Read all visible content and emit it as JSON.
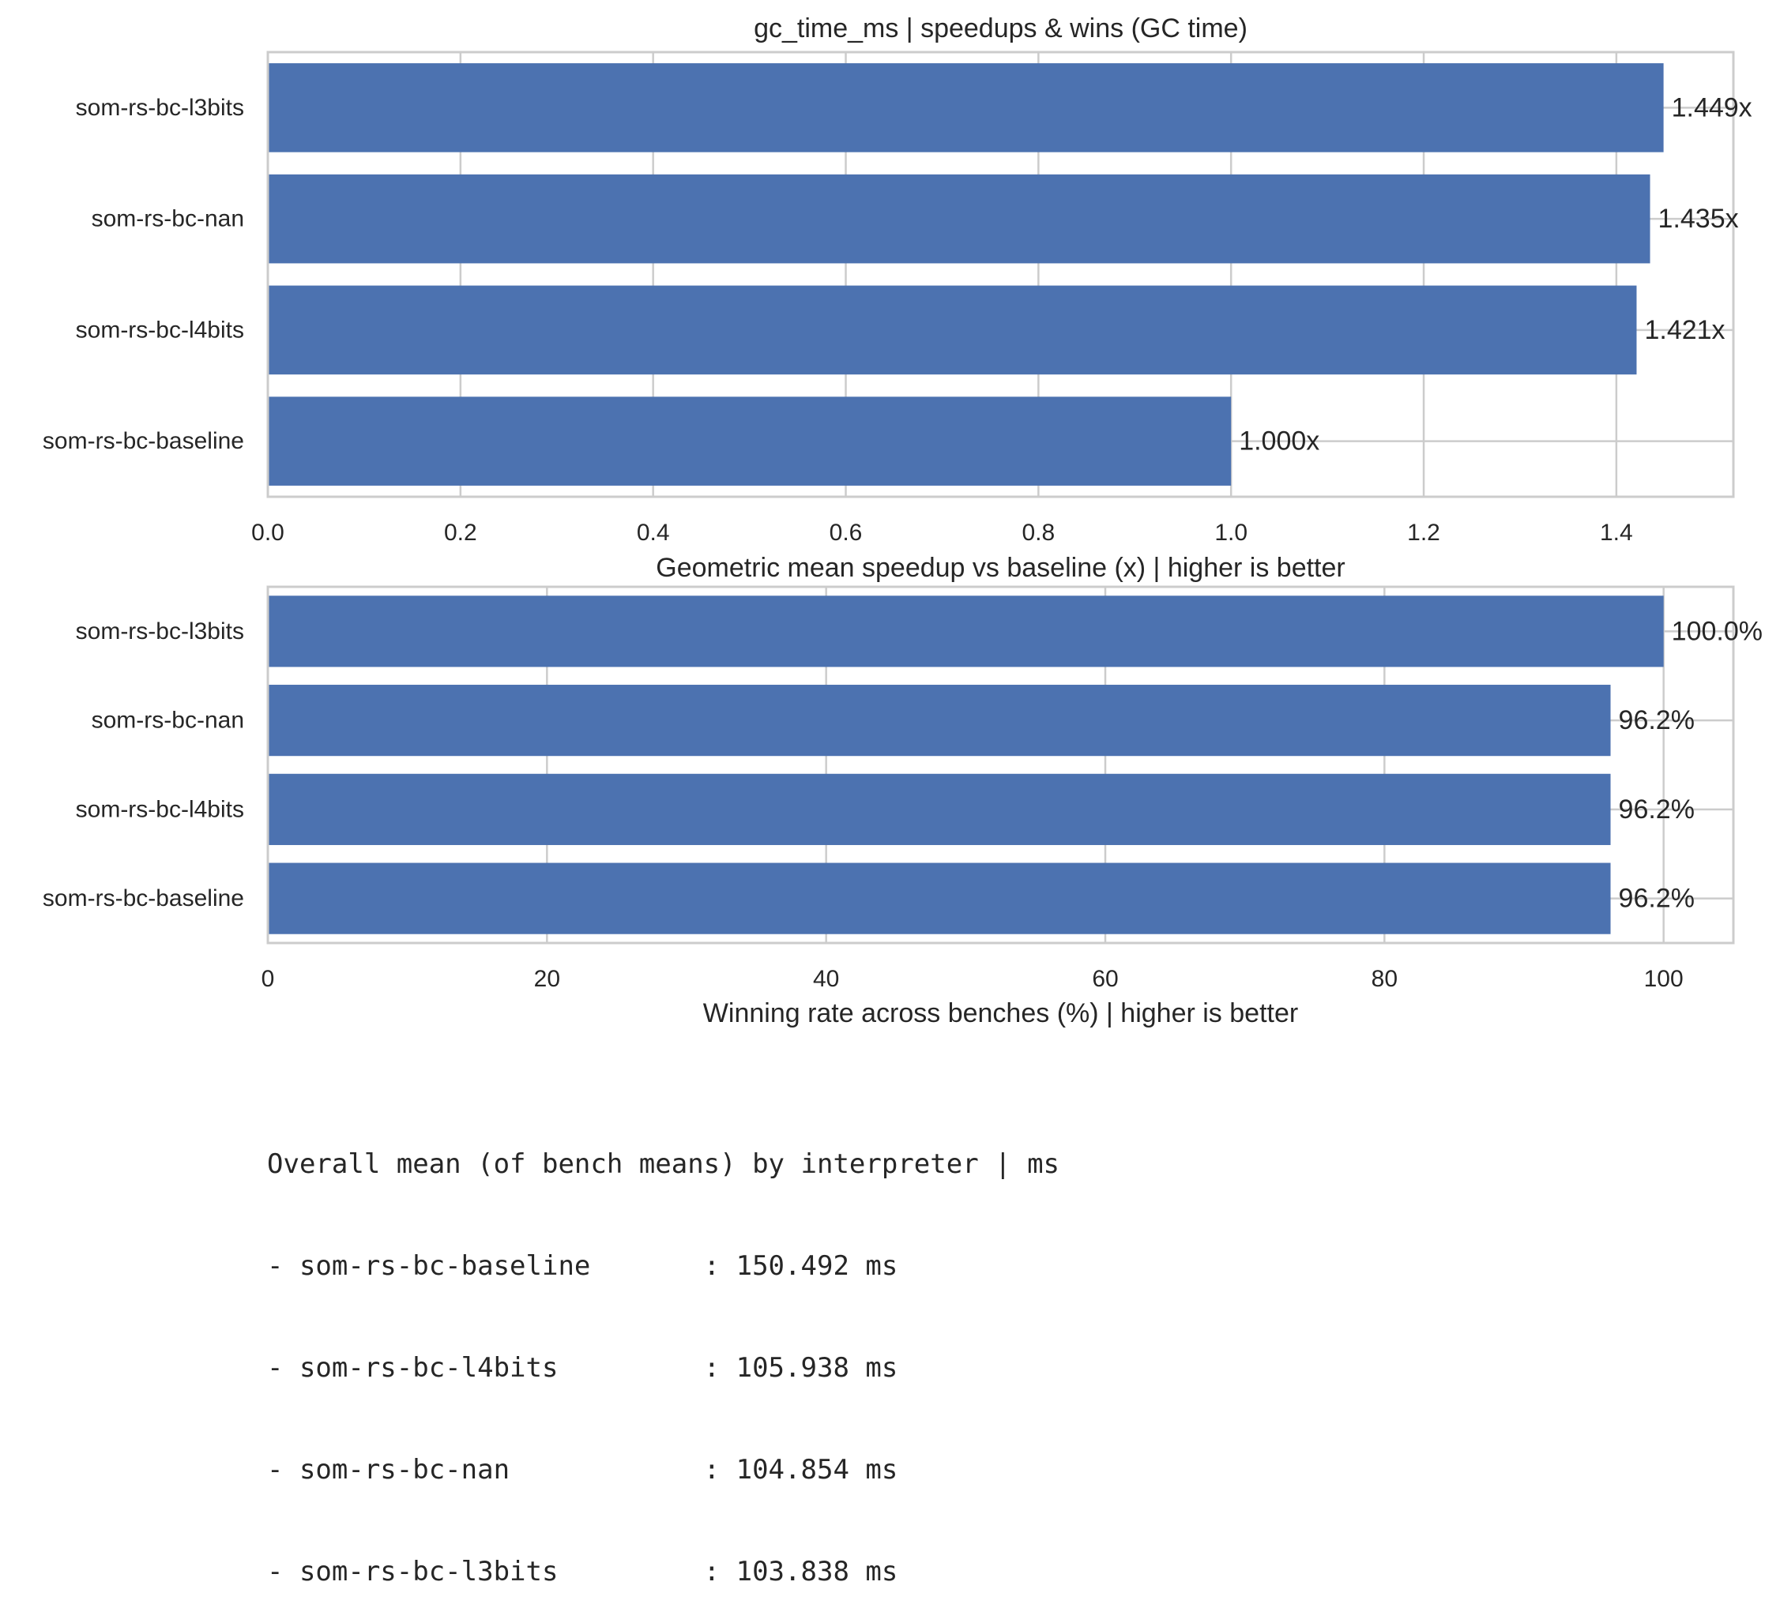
{
  "chart_data": [
    {
      "type": "bar",
      "orientation": "horizontal",
      "title": "gc_time_ms | speedups & wins (GC time)",
      "xlabel": "",
      "categories": [
        "som-rs-bc-l3bits",
        "som-rs-bc-nan",
        "som-rs-bc-l4bits",
        "som-rs-bc-baseline"
      ],
      "values": [
        1.449,
        1.435,
        1.421,
        1.0
      ],
      "data_labels": [
        "1.449x",
        "1.435x",
        "1.421x",
        "1.000x"
      ],
      "xticks": [
        0.0,
        0.2,
        0.4,
        0.6,
        0.8,
        1.0,
        1.2,
        1.4
      ],
      "xtick_labels": [
        "0.0",
        "0.2",
        "0.4",
        "0.6",
        "0.8",
        "1.0",
        "1.2",
        "1.4"
      ],
      "xlim": [
        0,
        1.5215
      ],
      "grid": true,
      "bar_color": "#4c72b0"
    },
    {
      "type": "bar",
      "orientation": "horizontal",
      "title": "Geometric mean speedup vs baseline (x) | higher is better",
      "xlabel": "Winning rate across benches (%) | higher is better",
      "categories": [
        "som-rs-bc-l3bits",
        "som-rs-bc-nan",
        "som-rs-bc-l4bits",
        "som-rs-bc-baseline"
      ],
      "values": [
        100.0,
        96.2,
        96.2,
        96.2
      ],
      "data_labels": [
        "100.0%",
        "96.2%",
        "96.2%",
        "96.2%"
      ],
      "xticks": [
        0,
        20,
        40,
        60,
        80,
        100
      ],
      "xtick_labels": [
        "0",
        "20",
        "40",
        "60",
        "80",
        "100"
      ],
      "xlim": [
        0,
        105
      ],
      "grid": true,
      "bar_color": "#4c72b0"
    }
  ],
  "summary": {
    "heading": "Overall mean (of bench means) by interpreter | ms",
    "lines": [
      "- som-rs-bc-baseline       : 150.492 ms",
      "- som-rs-bc-l4bits         : 105.938 ms",
      "- som-rs-bc-nan            : 104.854 ms",
      "- som-rs-bc-l3bits         : 103.838 ms"
    ]
  }
}
